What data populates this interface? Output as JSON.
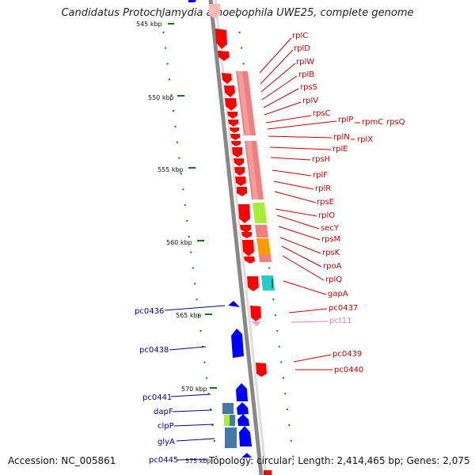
{
  "title": "Candidatus Protochlamydia amoebophila UWE25, complete genome",
  "footer": {
    "accession": "Accession: NC_005861",
    "topology": "Topology: circular; Length: 2,414,465 bp; Genes: 2,075"
  },
  "colors": {
    "forward_gene": "#ff0000",
    "reverse_gene": "#0000ff",
    "forward_label": "#cc0000",
    "reverse_label": "#000099",
    "pseudo_label": "#e080b0",
    "operon_band": "#f08080",
    "secY_band": "#aaee33",
    "rpoA_band": "#ff9900",
    "gapA_band": "#22cccc",
    "backbone": "#888888"
  },
  "kbp_ticks": [
    {
      "label": "545 kbp",
      "kbp": 545
    },
    {
      "label": "550 kbp",
      "kbp": 550
    },
    {
      "label": "555 kbp",
      "kbp": 555
    },
    {
      "label": "560 kbp",
      "kbp": 560
    },
    {
      "label": "565 kbp",
      "kbp": 565
    },
    {
      "label": "570 kbp",
      "kbp": 570
    },
    {
      "label": "575 kbp",
      "kbp": 575
    }
  ],
  "forward_genes": [
    "rplC",
    "rplD",
    "rplW",
    "rplB",
    "rpsS",
    "rplV",
    "rpsC",
    "rplP",
    "rpmC",
    "rpsQ",
    "rplN",
    "rplX",
    "rplE",
    "rpsH",
    "rplF",
    "rplR",
    "rpsE",
    "rplO",
    "secY",
    "rpsM",
    "rpsK",
    "rpoA",
    "rplQ",
    "gapA",
    "pc0437",
    "pct11",
    "pc0439",
    "pc0440"
  ],
  "reverse_genes": [
    "pc0436",
    "pc0438",
    "pc0441",
    "dapF",
    "clpP",
    "glyA",
    "pc0445"
  ]
}
